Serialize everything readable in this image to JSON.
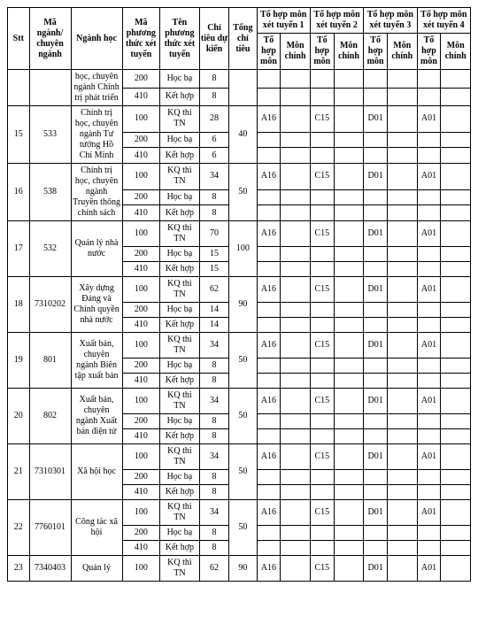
{
  "headers": {
    "stt": "Stt",
    "ma_nganh": "Mã ngành/ chuyên ngành",
    "nganh": "Ngành học",
    "ma_pt": "Mã phương thức xét tuyển",
    "ten_pt": "Tên phương thức xét tuyển",
    "chi_tieu": "Chỉ tiêu dự kiến",
    "tong": "Tổng chỉ tiêu",
    "th1": "Tổ hợp môn xét tuyển 1",
    "th2": "Tổ hợp môn xét tuyển 2",
    "th3": "Tổ hợp môn xét tuyển 3",
    "th4": "Tổ hợp môn xét tuyển 4",
    "tohop": "Tổ hợp môn",
    "mon": "Môn chính"
  },
  "groups": [
    {
      "stt": "",
      "ma": "",
      "nganh": "học, chuyên ngành Chính trị phát triển",
      "rows": [
        {
          "mapt": "200",
          "tenpt": "Học bạ",
          "ct": "8",
          "tong": "",
          "th": [
            "",
            "",
            "",
            "",
            "",
            "",
            "",
            ""
          ]
        },
        {
          "mapt": "410",
          "tenpt": "Kết hợp",
          "ct": "8",
          "tong": "",
          "th": [
            "",
            "",
            "",
            "",
            "",
            "",
            "",
            ""
          ]
        }
      ]
    },
    {
      "stt": "15",
      "ma": "533",
      "nganh": "Chính trị học, chuyên ngành Tư tưởng Hồ Chí Minh",
      "tong": "40",
      "rows": [
        {
          "mapt": "100",
          "tenpt": "KQ thi TN",
          "ct": "28",
          "th": [
            "A16",
            "",
            "C15",
            "",
            "D01",
            "",
            "A01",
            ""
          ]
        },
        {
          "mapt": "200",
          "tenpt": "Học bạ",
          "ct": "6",
          "th": [
            "",
            "",
            "",
            "",
            "",
            "",
            "",
            ""
          ]
        },
        {
          "mapt": "410",
          "tenpt": "Kết hợp",
          "ct": "6",
          "th": [
            "",
            "",
            "",
            "",
            "",
            "",
            "",
            ""
          ]
        }
      ]
    },
    {
      "stt": "16",
      "ma": "538",
      "nganh": "Chính trị học, chuyên ngành Truyền thông chính sách",
      "tong": "50",
      "rows": [
        {
          "mapt": "100",
          "tenpt": "KQ thi TN",
          "ct": "34",
          "th": [
            "A16",
            "",
            "C15",
            "",
            "D01",
            "",
            "A01",
            ""
          ]
        },
        {
          "mapt": "200",
          "tenpt": "Học bạ",
          "ct": "8",
          "th": [
            "",
            "",
            "",
            "",
            "",
            "",
            "",
            ""
          ]
        },
        {
          "mapt": "410",
          "tenpt": "Kết hợp",
          "ct": "8",
          "th": [
            "",
            "",
            "",
            "",
            "",
            "",
            "",
            ""
          ]
        }
      ]
    },
    {
      "stt": "17",
      "ma": "532",
      "nganh": "Quản lý nhà nước",
      "tong": "100",
      "rows": [
        {
          "mapt": "100",
          "tenpt": "KQ thi TN",
          "ct": "70",
          "th": [
            "A16",
            "",
            "C15",
            "",
            "D01",
            "",
            "A01",
            ""
          ]
        },
        {
          "mapt": "200",
          "tenpt": "Học bạ",
          "ct": "15",
          "th": [
            "",
            "",
            "",
            "",
            "",
            "",
            "",
            ""
          ]
        },
        {
          "mapt": "410",
          "tenpt": "Kết hợp",
          "ct": "15",
          "th": [
            "",
            "",
            "",
            "",
            "",
            "",
            "",
            ""
          ]
        }
      ]
    },
    {
      "stt": "18",
      "ma": "7310202",
      "nganh": "Xây dựng Đảng và Chính quyền nhà nước",
      "tong": "90",
      "rows": [
        {
          "mapt": "100",
          "tenpt": "KQ thi TN",
          "ct": "62",
          "th": [
            "A16",
            "",
            "C15",
            "",
            "D01",
            "",
            "A01",
            ""
          ]
        },
        {
          "mapt": "200",
          "tenpt": "Học bạ",
          "ct": "14",
          "th": [
            "",
            "",
            "",
            "",
            "",
            "",
            "",
            ""
          ]
        },
        {
          "mapt": "410",
          "tenpt": "Kết hợp",
          "ct": "14",
          "th": [
            "",
            "",
            "",
            "",
            "",
            "",
            "",
            ""
          ]
        }
      ]
    },
    {
      "stt": "19",
      "ma": "801",
      "nganh": "Xuất bản, chuyên ngành Biên tập xuất bản",
      "tong": "50",
      "rows": [
        {
          "mapt": "100",
          "tenpt": "KQ thi TN",
          "ct": "34",
          "th": [
            "A16",
            "",
            "C15",
            "",
            "D01",
            "",
            "A01",
            ""
          ]
        },
        {
          "mapt": "200",
          "tenpt": "Học bạ",
          "ct": "8",
          "th": [
            "",
            "",
            "",
            "",
            "",
            "",
            "",
            ""
          ]
        },
        {
          "mapt": "410",
          "tenpt": "Kết hợp",
          "ct": "8",
          "th": [
            "",
            "",
            "",
            "",
            "",
            "",
            "",
            ""
          ]
        }
      ]
    },
    {
      "stt": "20",
      "ma": "802",
      "nganh": "Xuất bản, chuyên ngành Xuất bản điện tử",
      "tong": "50",
      "rows": [
        {
          "mapt": "100",
          "tenpt": "KQ thi TN",
          "ct": "34",
          "th": [
            "A16",
            "",
            "C15",
            "",
            "D01",
            "",
            "A01",
            ""
          ]
        },
        {
          "mapt": "200",
          "tenpt": "Học bạ",
          "ct": "8",
          "th": [
            "",
            "",
            "",
            "",
            "",
            "",
            "",
            ""
          ]
        },
        {
          "mapt": "410",
          "tenpt": "Kết hợp",
          "ct": "8",
          "th": [
            "",
            "",
            "",
            "",
            "",
            "",
            "",
            ""
          ]
        }
      ]
    },
    {
      "stt": "21",
      "ma": "7310301",
      "nganh": "Xã hội học",
      "tong": "50",
      "rows": [
        {
          "mapt": "100",
          "tenpt": "KQ thi TN",
          "ct": "34",
          "th": [
            "A16",
            "",
            "C15",
            "",
            "D01",
            "",
            "A01",
            ""
          ]
        },
        {
          "mapt": "200",
          "tenpt": "Học bạ",
          "ct": "8",
          "th": [
            "",
            "",
            "",
            "",
            "",
            "",
            "",
            ""
          ]
        },
        {
          "mapt": "410",
          "tenpt": "Kết hợp",
          "ct": "8",
          "th": [
            "",
            "",
            "",
            "",
            "",
            "",
            "",
            ""
          ]
        }
      ]
    },
    {
      "stt": "22",
      "ma": "7760101",
      "nganh": "Công tác xã hội",
      "tong": "50",
      "rows": [
        {
          "mapt": "100",
          "tenpt": "KQ thi TN",
          "ct": "34",
          "th": [
            "A16",
            "",
            "C15",
            "",
            "D01",
            "",
            "A01",
            ""
          ]
        },
        {
          "mapt": "200",
          "tenpt": "Học bạ",
          "ct": "8",
          "th": [
            "",
            "",
            "",
            "",
            "",
            "",
            "",
            ""
          ]
        },
        {
          "mapt": "410",
          "tenpt": "Kết hợp",
          "ct": "8",
          "th": [
            "",
            "",
            "",
            "",
            "",
            "",
            "",
            ""
          ]
        }
      ]
    },
    {
      "stt": "23",
      "ma": "7340403",
      "nganh": "Quản lý",
      "tong": "90",
      "rows": [
        {
          "mapt": "100",
          "tenpt": "KQ thi TN",
          "ct": "62",
          "th": [
            "A16",
            "",
            "C15",
            "",
            "D01",
            "",
            "A01",
            ""
          ]
        }
      ]
    }
  ]
}
